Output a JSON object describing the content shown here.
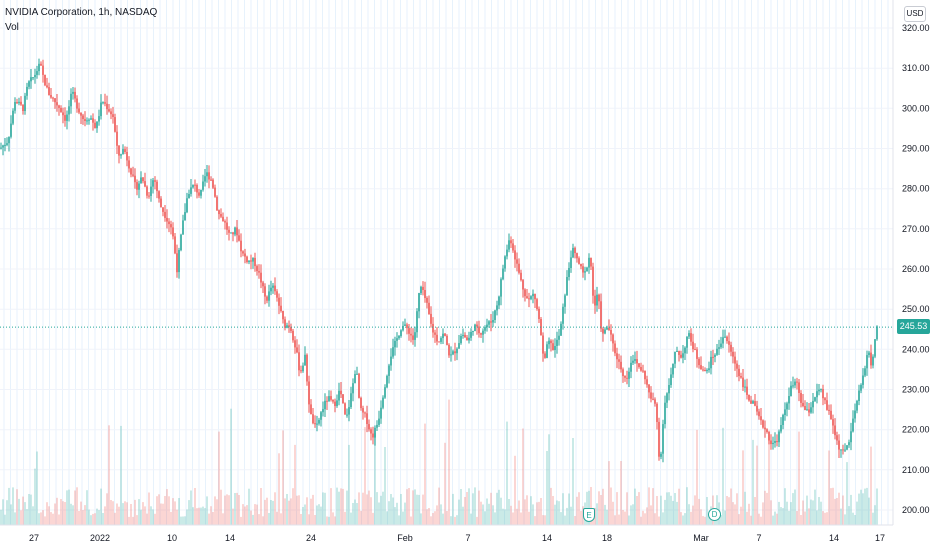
{
  "header": {
    "symbol_title": "NVIDIA Corporation, 1h, NASDAQ",
    "volume_label": "Vol",
    "currency": "USD"
  },
  "current_price_label": "245.53",
  "events": {
    "earnings_label": "E",
    "dividend_label": "D"
  },
  "colors": {
    "up": "#26a69a",
    "down": "#ef5350",
    "grid": "#e7f2fc",
    "axis_text": "#131722"
  },
  "chart_data": {
    "type": "candlestick",
    "x_ticks": [
      "27",
      "2022",
      "10",
      "14",
      "24",
      "Feb",
      "7",
      "14",
      "18",
      "Mar",
      "7",
      "14",
      "17"
    ],
    "y_ticks": [
      "200.00",
      "210.00",
      "220.00",
      "230.00",
      "240.00",
      "250.00",
      "260.00",
      "270.00",
      "280.00",
      "290.00",
      "300.00",
      "310.00",
      "320.00"
    ],
    "ylim": [
      198,
      322
    ],
    "current_price": 245.53,
    "close_path": [
      [
        0,
        290
      ],
      [
        8,
        292
      ],
      [
        15,
        302
      ],
      [
        23,
        300
      ],
      [
        28,
        306
      ],
      [
        34,
        308
      ],
      [
        40,
        311
      ],
      [
        44,
        307
      ],
      [
        48,
        304
      ],
      [
        54,
        302
      ],
      [
        60,
        300
      ],
      [
        66,
        297
      ],
      [
        72,
        304
      ],
      [
        78,
        300
      ],
      [
        84,
        297
      ],
      [
        90,
        298
      ],
      [
        96,
        295
      ],
      [
        102,
        302
      ],
      [
        108,
        300
      ],
      [
        113,
        298
      ],
      [
        118,
        288
      ],
      [
        124,
        290
      ],
      [
        130,
        285
      ],
      [
        136,
        280
      ],
      [
        142,
        283
      ],
      [
        148,
        278
      ],
      [
        154,
        283
      ],
      [
        160,
        276
      ],
      [
        166,
        273
      ],
      [
        172,
        270
      ],
      [
        177,
        260
      ],
      [
        182,
        270
      ],
      [
        188,
        279
      ],
      [
        194,
        281
      ],
      [
        200,
        278
      ],
      [
        206,
        284
      ],
      [
        212,
        282
      ],
      [
        218,
        274
      ],
      [
        224,
        272
      ],
      [
        230,
        268
      ],
      [
        236,
        270
      ],
      [
        242,
        264
      ],
      [
        248,
        262
      ],
      [
        254,
        262
      ],
      [
        260,
        258
      ],
      [
        266,
        252
      ],
      [
        272,
        256
      ],
      [
        278,
        252
      ],
      [
        284,
        246
      ],
      [
        290,
        246
      ],
      [
        296,
        240
      ],
      [
        300,
        234
      ],
      [
        305,
        238
      ],
      [
        310,
        224
      ],
      [
        316,
        220
      ],
      [
        322,
        225
      ],
      [
        328,
        228
      ],
      [
        334,
        226
      ],
      [
        340,
        230
      ],
      [
        346,
        222
      ],
      [
        352,
        230
      ],
      [
        356,
        236
      ],
      [
        360,
        225
      ],
      [
        366,
        223
      ],
      [
        372,
        218
      ],
      [
        378,
        222
      ],
      [
        384,
        230
      ],
      [
        390,
        238
      ],
      [
        396,
        242
      ],
      [
        402,
        246
      ],
      [
        408,
        245
      ],
      [
        414,
        242
      ],
      [
        420,
        256
      ],
      [
        426,
        252
      ],
      [
        432,
        245
      ],
      [
        438,
        242
      ],
      [
        444,
        244
      ],
      [
        450,
        238
      ],
      [
        456,
        240
      ],
      [
        462,
        244
      ],
      [
        468,
        242
      ],
      [
        474,
        246
      ],
      [
        480,
        244
      ],
      [
        486,
        246
      ],
      [
        492,
        247
      ],
      [
        498,
        252
      ],
      [
        504,
        262
      ],
      [
        510,
        268
      ],
      [
        516,
        262
      ],
      [
        522,
        256
      ],
      [
        528,
        252
      ],
      [
        534,
        254
      ],
      [
        540,
        246
      ],
      [
        544,
        236
      ],
      [
        548,
        242
      ],
      [
        554,
        240
      ],
      [
        560,
        244
      ],
      [
        566,
        256
      ],
      [
        572,
        265
      ],
      [
        578,
        262
      ],
      [
        584,
        258
      ],
      [
        590,
        264
      ],
      [
        594,
        250
      ],
      [
        598,
        254
      ],
      [
        602,
        243
      ],
      [
        608,
        246
      ],
      [
        614,
        240
      ],
      [
        620,
        236
      ],
      [
        626,
        232
      ],
      [
        632,
        238
      ],
      [
        638,
        236
      ],
      [
        644,
        234
      ],
      [
        650,
        228
      ],
      [
        656,
        226
      ],
      [
        660,
        210
      ],
      [
        664,
        226
      ],
      [
        670,
        232
      ],
      [
        676,
        240
      ],
      [
        682,
        238
      ],
      [
        688,
        244
      ],
      [
        694,
        240
      ],
      [
        700,
        236
      ],
      [
        706,
        234
      ],
      [
        712,
        238
      ],
      [
        718,
        240
      ],
      [
        724,
        244
      ],
      [
        730,
        240
      ],
      [
        736,
        236
      ],
      [
        742,
        232
      ],
      [
        748,
        228
      ],
      [
        754,
        226
      ],
      [
        760,
        222
      ],
      [
        766,
        220
      ],
      [
        772,
        216
      ],
      [
        778,
        218
      ],
      [
        784,
        224
      ],
      [
        790,
        230
      ],
      [
        796,
        232
      ],
      [
        802,
        226
      ],
      [
        808,
        224
      ],
      [
        814,
        228
      ],
      [
        820,
        230
      ],
      [
        826,
        226
      ],
      [
        832,
        222
      ],
      [
        838,
        216
      ],
      [
        844,
        214
      ],
      [
        850,
        218
      ],
      [
        856,
        226
      ],
      [
        862,
        232
      ],
      [
        868,
        240
      ],
      [
        872,
        235
      ],
      [
        876,
        245.53
      ]
    ],
    "volume_ylim": [
      0,
      100
    ]
  }
}
